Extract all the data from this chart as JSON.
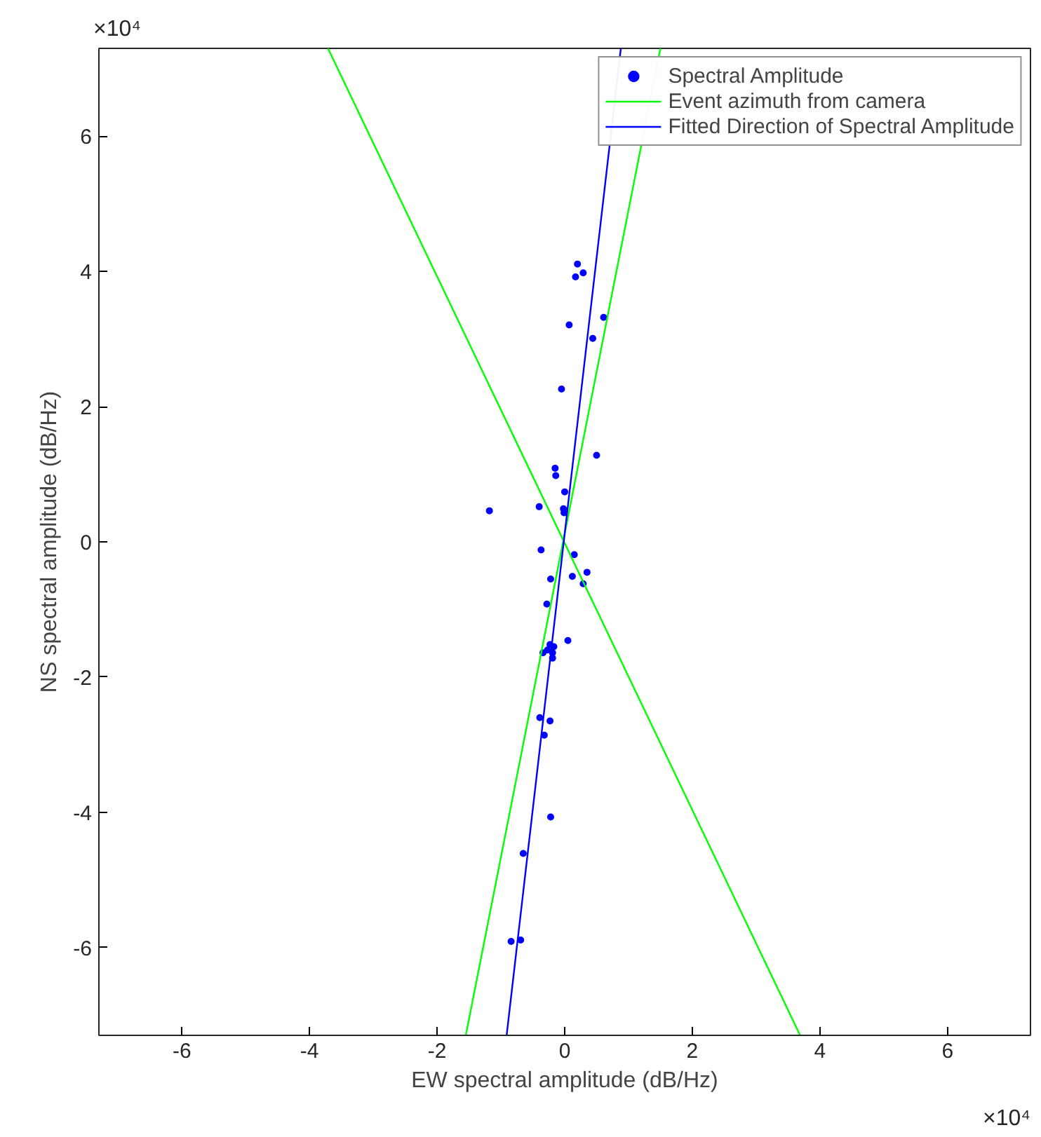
{
  "chart_data": {
    "type": "scatter",
    "xlabel": "EW spectral amplitude (dB/Hz)",
    "ylabel": "NS spectral amplitude (dB/Hz)",
    "annotations": [
      "×10⁴",
      "×10⁴"
    ],
    "xlim": [
      -7.3,
      7.3
    ],
    "ylim": [
      -7.3,
      7.3
    ],
    "xticks": [
      -6,
      -4,
      -2,
      0,
      2,
      4,
      6
    ],
    "yticks": [
      -6,
      -4,
      -2,
      0,
      2,
      4,
      6
    ],
    "grid": false,
    "legend": "top right",
    "series": [
      {
        "name": "Spectral Amplitude",
        "marker": "circle",
        "color": "#0000ff",
        "x": [
          0.2,
          0.29,
          0.17,
          0.61,
          0.07,
          0.44,
          -0.05,
          0.5,
          -0.15,
          -0.14,
          0.0,
          -0.4,
          -1.18,
          -0.02,
          -0.01,
          -0.37,
          0.15,
          -0.22,
          0.12,
          0.35,
          0.29,
          -0.28,
          0.05,
          -0.23,
          -0.17,
          -0.34,
          -0.27,
          -0.19,
          -0.19,
          -0.39,
          -0.23,
          -0.32,
          -0.22,
          -0.65,
          -0.84,
          -0.69
        ],
        "values": [
          4.11,
          3.98,
          3.92,
          3.32,
          3.21,
          3.01,
          2.26,
          1.28,
          1.09,
          0.98,
          0.74,
          0.52,
          0.46,
          0.49,
          0.43,
          -0.12,
          -0.19,
          -0.55,
          -0.51,
          -0.45,
          -0.62,
          -0.92,
          -1.46,
          -1.52,
          -1.55,
          -1.64,
          -1.6,
          -1.64,
          -1.72,
          -2.6,
          -2.65,
          -2.86,
          -4.07,
          -4.61,
          -5.91,
          -5.89
        ]
      },
      {
        "name": "Event azimuth from camera",
        "type": "line",
        "marker": "none",
        "line_style": "solid",
        "color": "#00ff00",
        "x": [
          -1.55,
          1.5
        ],
        "values": [
          -7.3,
          7.3
        ]
      },
      {
        "type": "line",
        "marker": "none",
        "line_style": "solid",
        "color": "#00ff00",
        "x": [
          -3.71,
          3.69
        ],
        "values": [
          7.3,
          -7.3
        ]
      },
      {
        "name": "Fitted Direction of Spectral Amplitude",
        "type": "line",
        "marker": "none",
        "line_style": "solid",
        "color": "#0000ff",
        "x": [
          -0.91,
          0.88
        ],
        "values": [
          -7.3,
          7.3
        ]
      }
    ]
  }
}
